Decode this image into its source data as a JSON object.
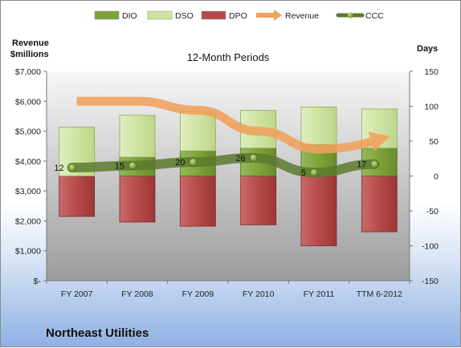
{
  "footer_title": "Northeast Utilities",
  "chart_data": {
    "type": "bar",
    "title": "12-Month Periods",
    "categories": [
      "FY 2007",
      "FY 2008",
      "FY 2009",
      "FY 2010",
      "FY 2011",
      "TTM 6-2012"
    ],
    "left_axis": {
      "label_line1": "Revenue",
      "label_line2": "$millions",
      "range": [
        0,
        7000
      ],
      "ticks": [
        0,
        1000,
        2000,
        3000,
        4000,
        5000,
        6000,
        7000
      ],
      "tick_labels": [
        "$-",
        "$1,000",
        "$2,000",
        "$3,000",
        "$4,000",
        "$5,000",
        "$6,000",
        "$7,000"
      ]
    },
    "right_axis": {
      "label": "Days",
      "range": [
        -150,
        150
      ],
      "ticks": [
        -150,
        -100,
        -50,
        0,
        50,
        100,
        150
      ],
      "tick_labels": [
        "-150",
        "-100",
        "-50",
        "0",
        "50",
        "100",
        "150"
      ]
    },
    "legend": {
      "position": "top",
      "items": [
        {
          "name": "DIO",
          "kind": "box",
          "color": "#7ea33a"
        },
        {
          "name": "DSO",
          "kind": "box",
          "color": "#cfe3a2"
        },
        {
          "name": "DPO",
          "kind": "box",
          "color": "#b64a4a"
        },
        {
          "name": "Revenue",
          "kind": "arrow",
          "color": "#f0a05a"
        },
        {
          "name": "CCC",
          "kind": "line-marker",
          "color": "#5a7a2e"
        }
      ]
    },
    "series": [
      {
        "name": "DPO",
        "axis": "right",
        "values": [
          -58,
          -66,
          -72,
          -70,
          -100,
          -80
        ],
        "color": "#b64a4a"
      },
      {
        "name": "DIO",
        "axis": "right",
        "values": [
          0,
          27,
          36,
          40,
          45,
          40
        ],
        "color": "#7ea33a"
      },
      {
        "name": "DSO",
        "axis": "right",
        "values": [
          70,
          60,
          56,
          54,
          54,
          56
        ],
        "color": "#cfe3a2"
      },
      {
        "name": "CCC",
        "axis": "right",
        "values": [
          12,
          15,
          20,
          26,
          5,
          17
        ],
        "labels": [
          "12",
          "15",
          "20",
          "26",
          "5",
          "17"
        ],
        "color": "#5a7a2e"
      },
      {
        "name": "Revenue",
        "axis": "left",
        "values": [
          6000,
          6000,
          5700,
          5000,
          4400,
          4700
        ],
        "color": "#f0a05a"
      }
    ],
    "grid": false,
    "colors": {
      "plot_top": "#f7f7f7",
      "plot_bottom": "#9f9f9f",
      "dpo_border": "#7a2b2b",
      "dio_border": "#4f6b22",
      "dso_border": "#8faa55"
    }
  }
}
